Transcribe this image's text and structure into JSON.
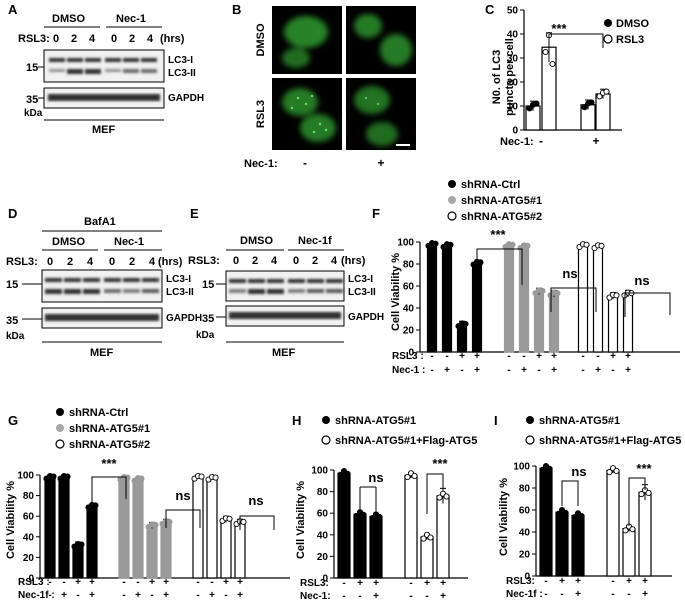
{
  "panels": {
    "A": {
      "letter": "A",
      "groups": [
        "DMSO",
        "Nec-1"
      ],
      "treatment": "RSL3:",
      "timepoints": [
        "0",
        "2",
        "4",
        "0",
        "2",
        "4"
      ],
      "unit": "(hrs)",
      "markers": [
        "15",
        "35"
      ],
      "bands": [
        "LC3-I",
        "LC3-II",
        "GAPDH"
      ],
      "kda": "kDa",
      "cell": "MEF"
    },
    "B": {
      "letter": "B",
      "rows": [
        "DMSO",
        "RSL3"
      ],
      "footer_label": "Nec-1:",
      "footer_minus": "-",
      "footer_plus": "+"
    },
    "C": {
      "letter": "C",
      "ylabel_l1": "N0. of LC3",
      "ylabel_l2": "puncta per cell",
      "legend": [
        "DMSO",
        "RSL3"
      ],
      "sig": "***",
      "footer_label": "Nec-1:",
      "footer_minus": "-",
      "footer_plus": "+"
    },
    "D": {
      "letter": "D",
      "top": "BafA1",
      "groups": [
        "DMSO",
        "Nec-1"
      ],
      "treatment": "RSL3:",
      "timepoints": [
        "0",
        "2",
        "4",
        "0",
        "2",
        "4"
      ],
      "unit": "(hrs)",
      "markers": [
        "15",
        "35"
      ],
      "bands": [
        "LC3-I",
        "LC3-II",
        "GAPDH"
      ],
      "kda": "kDa",
      "cell": "MEF"
    },
    "E": {
      "letter": "E",
      "groups": [
        "DMSO",
        "Nec-1f"
      ],
      "treatment": "RSL3:",
      "timepoints": [
        "0",
        "2",
        "4",
        "0",
        "2",
        "4"
      ],
      "unit": "(hrs)",
      "markers": [
        "15",
        "35"
      ],
      "bands": [
        "LC3-I",
        "LC3-II",
        "GAPDH"
      ],
      "kda": "kDa",
      "cell": "MEF"
    },
    "F": {
      "letter": "F",
      "legend": [
        "shRNA-Ctrl",
        "shRNA-ATG5#1",
        "shRNA-ATG5#2"
      ],
      "ylabel": "Cell Viability %",
      "sig": [
        "***",
        "ns",
        "ns"
      ],
      "row1_label": "RSL3 :",
      "row1": [
        "-",
        "-",
        "+",
        "+",
        "-",
        "-",
        "+",
        "+",
        "-",
        "-",
        "+",
        "+"
      ],
      "row2_label": "Nec-1 :",
      "row2": [
        "-",
        "+",
        "-",
        "+",
        "-",
        "+",
        "-",
        "+",
        "-",
        "+",
        "-",
        "+"
      ]
    },
    "G": {
      "letter": "G",
      "legend": [
        "shRNA-Ctrl",
        "shRNA-ATG5#1",
        "shRNA-ATG5#2"
      ],
      "ylabel": "Cell Viability %",
      "sig": [
        "***",
        "ns",
        "ns"
      ],
      "row1_label": "RSL3 :",
      "row1": [
        "-",
        "-",
        "+",
        "+",
        "-",
        "-",
        "+",
        "+",
        "-",
        "-",
        "+",
        "+"
      ],
      "row2_label": "Nec-1f :",
      "row2": [
        "-",
        "+",
        "-",
        "+",
        "-",
        "+",
        "-",
        "+",
        "-",
        "+",
        "-",
        "+"
      ]
    },
    "H": {
      "letter": "H",
      "legend": [
        "shRNA-ATG5#1",
        "shRNA-ATG5#1+Flag-ATG5"
      ],
      "ylabel": "Cell Viability %",
      "sig": [
        "ns",
        "***"
      ],
      "row1_label": "RSL3:",
      "row1": [
        "-",
        "+",
        "+",
        "-",
        "+",
        "+"
      ],
      "row2_label": "Nec-1:",
      "row2": [
        "-",
        "-",
        "+",
        "-",
        "-",
        "+"
      ]
    },
    "I": {
      "letter": "I",
      "legend": [
        "shRNA-ATG5#1",
        "shRNA-ATG5#1+Flag-ATG5"
      ],
      "ylabel": "Cell Viability %",
      "sig": [
        "ns",
        "***"
      ],
      "row1_label": "RSL3:",
      "row1": [
        "-",
        "+",
        "+",
        "-",
        "+",
        "+"
      ],
      "row2_label": "Nec-1f :",
      "row2": [
        "-",
        "-",
        "+",
        "-",
        "-",
        "+"
      ]
    }
  },
  "chart_data": [
    {
      "panel": "C",
      "type": "bar",
      "categories": [
        "-",
        "+"
      ],
      "series": [
        {
          "name": "DMSO",
          "values": [
            10,
            10.5
          ]
        },
        {
          "name": "RSL3",
          "values": [
            34.5,
            15
          ]
        }
      ],
      "yticks": [
        0,
        10,
        20,
        30,
        40,
        50
      ],
      "ylim": [
        0,
        50
      ]
    },
    {
      "panel": "F",
      "type": "bar",
      "series": [
        {
          "name": "shRNA-Ctrl",
          "values": [
            98,
            97,
            25,
            81
          ]
        },
        {
          "name": "shRNA-ATG5#1",
          "values": [
            97,
            96,
            55,
            53
          ]
        },
        {
          "name": "shRNA-ATG5#2",
          "values": [
            97,
            96,
            51,
            53
          ]
        }
      ],
      "yticks": [
        0,
        20,
        40,
        60,
        80,
        100
      ],
      "ylim": [
        0,
        100
      ]
    },
    {
      "panel": "G",
      "type": "bar",
      "series": [
        {
          "name": "shRNA-Ctrl",
          "values": [
            98,
            98,
            32,
            70
          ]
        },
        {
          "name": "shRNA-ATG5#1",
          "values": [
            97,
            96,
            51,
            54
          ]
        },
        {
          "name": "shRNA-ATG5#2",
          "values": [
            98,
            97,
            57,
            54
          ]
        }
      ],
      "yticks": [
        0,
        20,
        40,
        60,
        80,
        100
      ],
      "ylim": [
        0,
        100
      ]
    },
    {
      "panel": "H",
      "type": "bar",
      "series": [
        {
          "name": "shRNA-ATG5#1",
          "values": [
            97,
            59,
            57
          ]
        },
        {
          "name": "shRNA-ATG5#1+Flag-ATG5",
          "values": [
            95,
            38,
            76
          ]
        }
      ],
      "yticks": [
        0,
        20,
        40,
        60,
        80,
        100
      ],
      "ylim": [
        0,
        100
      ]
    },
    {
      "panel": "I",
      "type": "bar",
      "series": [
        {
          "name": "shRNA-ATG5#1",
          "values": [
            98,
            58,
            55
          ]
        },
        {
          "name": "shRNA-ATG5#1+Flag-ATG5",
          "values": [
            96,
            43,
            76
          ]
        }
      ],
      "yticks": [
        0,
        20,
        40,
        60,
        80,
        100
      ],
      "ylim": [
        0,
        100
      ]
    }
  ]
}
